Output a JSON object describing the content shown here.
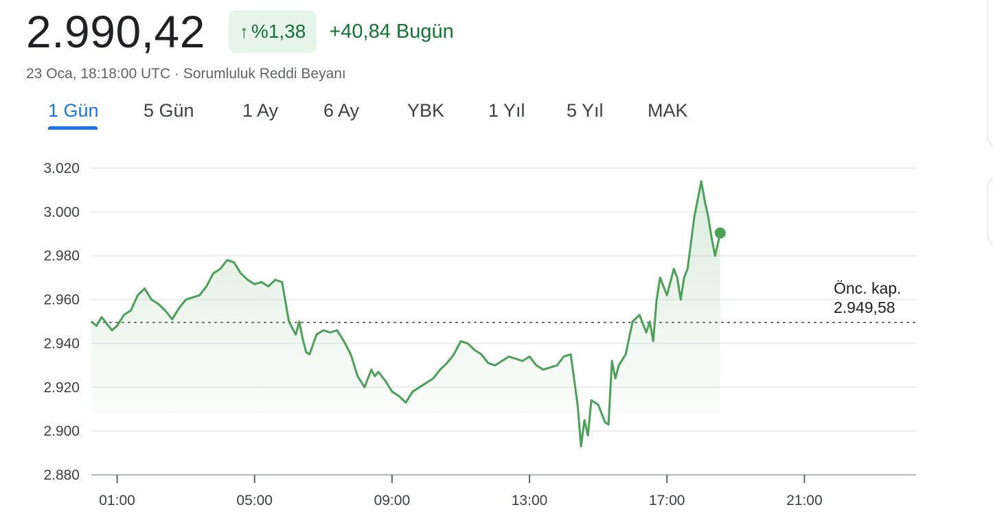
{
  "quote": {
    "price": "2.990,42",
    "change_arrow": "↑",
    "change_percent": "%1,38",
    "change_today": "+40,84 Bugün",
    "timestamp": "23 Oca, 18:18:00 UTC",
    "separator": "·",
    "disclaimer": "Sorumluluk Reddi Beyanı"
  },
  "colors": {
    "positive": "#137333",
    "line": "#4c9f57",
    "active_tab": "#1a73e8"
  },
  "tabs": [
    {
      "label": "1 Gün",
      "active": true
    },
    {
      "label": "5 Gün",
      "active": false
    },
    {
      "label": "1 Ay",
      "active": false
    },
    {
      "label": "6 Ay",
      "active": false
    },
    {
      "label": "YBK",
      "active": false
    },
    {
      "label": "1 Yıl",
      "active": false
    },
    {
      "label": "5 Yıl",
      "active": false
    },
    {
      "label": "MAK",
      "active": false
    }
  ],
  "chart_data": {
    "type": "line",
    "y_range": [
      2880,
      3020
    ],
    "y_ticks": [
      3020,
      3000,
      2980,
      2960,
      2940,
      2920,
      2900,
      2880
    ],
    "y_tick_labels": [
      "3.020",
      "3.000",
      "2.980",
      "2.960",
      "2.940",
      "2.920",
      "2.900",
      "2.880"
    ],
    "x_range_hours": [
      0.25,
      24.25
    ],
    "x_ticks": [
      1,
      5,
      9,
      13,
      17,
      21
    ],
    "x_tick_labels": [
      "01:00",
      "05:00",
      "09:00",
      "13:00",
      "17:00",
      "21:00"
    ],
    "previous_close": {
      "label_line1": "Önc. kap.",
      "label_line2": "2.949,58",
      "value": 2949.58
    },
    "last_point": {
      "x": 18.55,
      "y": 2990.42
    },
    "grid": true,
    "series": [
      {
        "x": [
          0.25,
          0.4,
          0.55,
          0.7,
          0.85,
          1.0,
          1.2,
          1.4,
          1.6,
          1.8,
          2.0,
          2.2,
          2.4,
          2.6,
          2.8,
          3.0,
          3.2,
          3.4,
          3.6,
          3.8,
          4.0,
          4.2,
          4.4,
          4.6,
          4.8,
          5.0,
          5.2,
          5.4,
          5.6,
          5.8,
          6.0,
          6.2,
          6.3,
          6.4,
          6.5,
          6.6,
          6.8,
          7.0,
          7.2,
          7.4,
          7.6,
          7.8,
          8.0,
          8.2,
          8.4,
          8.5,
          8.6,
          8.8,
          9.0,
          9.2,
          9.4,
          9.6,
          9.8,
          10.0,
          10.2,
          10.4,
          10.6,
          10.8,
          11.0,
          11.2,
          11.4,
          11.6,
          11.8,
          12.0,
          12.2,
          12.4,
          12.6,
          12.8,
          13.0,
          13.2,
          13.4,
          13.6,
          13.8,
          14.0,
          14.2,
          14.4,
          14.5,
          14.6,
          14.7,
          14.8,
          15.0,
          15.2,
          15.3,
          15.4,
          15.5,
          15.6,
          15.8,
          16.0,
          16.2,
          16.4,
          16.5,
          16.6,
          16.7,
          16.8,
          17.0,
          17.2,
          17.3,
          17.4,
          17.5,
          17.6,
          17.8,
          18.0,
          18.1,
          18.2,
          18.3,
          18.4,
          18.55
        ],
        "y": [
          2950,
          2948,
          2952,
          2949,
          2946,
          2948,
          2953,
          2955,
          2962,
          2965,
          2960,
          2958,
          2955,
          2951,
          2956,
          2960,
          2961,
          2962,
          2966,
          2972,
          2974,
          2978,
          2977,
          2972,
          2969,
          2967,
          2968,
          2966,
          2969,
          2968,
          2950,
          2944,
          2950,
          2942,
          2936,
          2935,
          2944,
          2946,
          2945,
          2946,
          2941,
          2935,
          2925,
          2920,
          2928,
          2925,
          2927,
          2923,
          2918,
          2916,
          2913,
          2918,
          2920,
          2922,
          2924,
          2928,
          2931,
          2935,
          2941,
          2940,
          2937,
          2935,
          2931,
          2930,
          2932,
          2934,
          2933,
          2932,
          2934,
          2930,
          2928,
          2929,
          2930,
          2934,
          2935,
          2912,
          2893,
          2905,
          2898,
          2914,
          2912,
          2904,
          2903,
          2932,
          2924,
          2930,
          2935,
          2950,
          2953,
          2945,
          2950,
          2941,
          2960,
          2970,
          2962,
          2974,
          2970,
          2960,
          2970,
          2974,
          2998,
          3014,
          3005,
          2998,
          2988,
          2980,
          2990.42
        ]
      }
    ]
  }
}
